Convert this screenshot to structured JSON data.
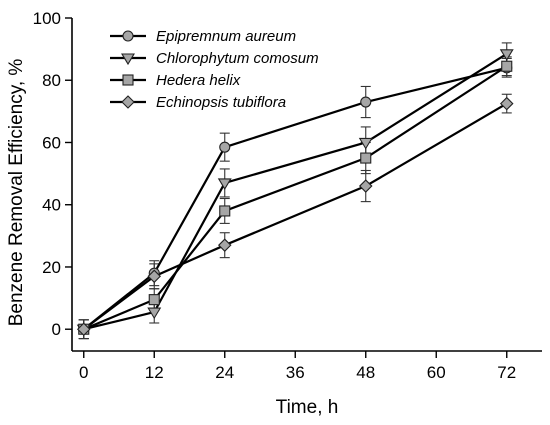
{
  "chart_data": {
    "type": "line",
    "title": "",
    "xlabel": "Time, h",
    "ylabel": "Benzene Removal Efficiency, %",
    "x": [
      0,
      12,
      24,
      48,
      72
    ],
    "xticks": [
      0,
      12,
      24,
      36,
      48,
      60,
      72
    ],
    "yticks": [
      0,
      20,
      40,
      60,
      80,
      100
    ],
    "xlim": [
      -2,
      78
    ],
    "ylim": [
      -7,
      100
    ],
    "grid": false,
    "legend_position": "top-left",
    "series": [
      {
        "name": "Epipremnum aureum",
        "marker": "circle",
        "values": [
          0,
          18,
          58.5,
          73,
          84
        ],
        "errors": [
          3,
          4,
          4.5,
          5,
          3
        ]
      },
      {
        "name": "Chlorophytum comosum",
        "marker": "triangle-down",
        "values": [
          0,
          5.5,
          47,
          60,
          88.5
        ],
        "errors": [
          3,
          3.5,
          4.5,
          5,
          3.5
        ]
      },
      {
        "name": "Hedera helix",
        "marker": "square",
        "values": [
          0,
          9.5,
          38,
          55,
          84.5
        ],
        "errors": [
          3,
          3.5,
          4,
          5,
          3
        ]
      },
      {
        "name": "Echinopsis tubiflora",
        "marker": "diamond",
        "values": [
          0,
          17,
          27,
          46,
          72.5
        ],
        "errors": [
          3,
          4,
          4,
          5,
          3
        ]
      }
    ]
  }
}
